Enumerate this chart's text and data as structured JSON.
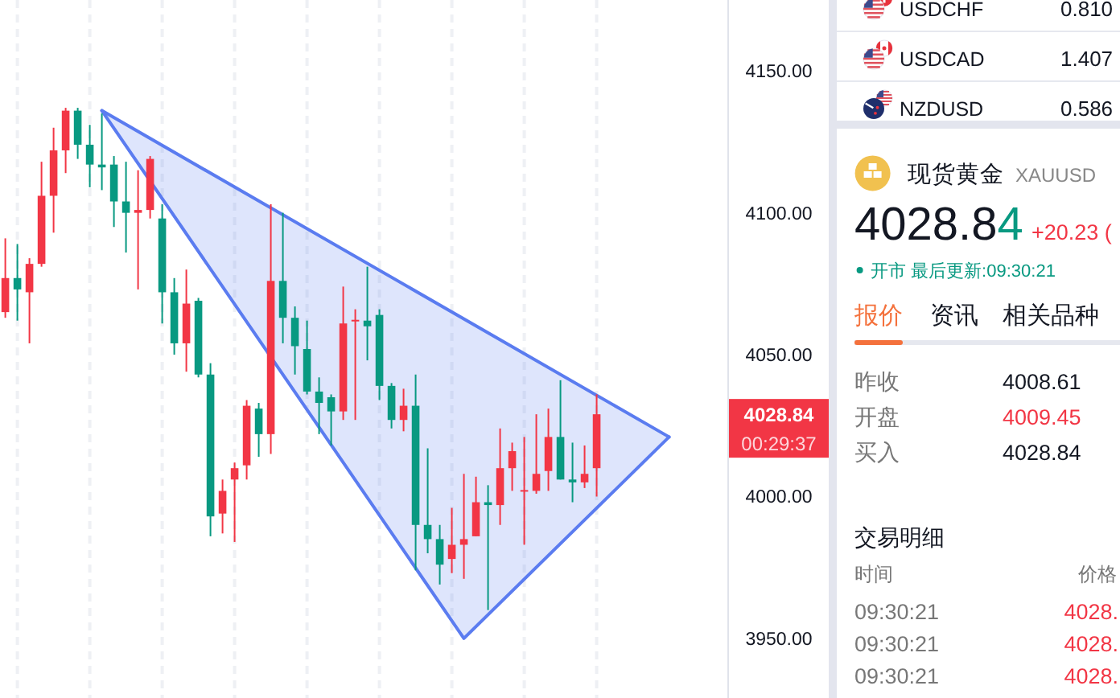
{
  "chart_data": [
    {
      "type": "candlestick",
      "categories": [
        null,
        null,
        null,
        null,
        null,
        null,
        null,
        null,
        null,
        null,
        null,
        null,
        null,
        null,
        null,
        null,
        null,
        null,
        null,
        null,
        null,
        null,
        null,
        null,
        null,
        null,
        null,
        null,
        null,
        null,
        null,
        null,
        null,
        null,
        null,
        null,
        null,
        null,
        null,
        null,
        null,
        null,
        null,
        null,
        null,
        null,
        null,
        null,
        null,
        null,
        null,
        null,
        null,
        null,
        null,
        null,
        null,
        null,
        null,
        null
      ],
      "ohlc": [
        [
          4065,
          4091,
          4063,
          4077
        ],
        [
          4077,
          4089,
          4062,
          4073
        ],
        [
          4072,
          4084,
          4054,
          4082
        ],
        [
          4082,
          4118,
          4081,
          4106
        ],
        [
          4106,
          4130,
          4093,
          4122
        ],
        [
          4122,
          4137,
          4114,
          4136
        ],
        [
          4136,
          4137,
          4119,
          4124
        ],
        [
          4124,
          4131,
          4109,
          4117
        ],
        [
          4117,
          4135,
          4108,
          4116
        ],
        [
          4117,
          4120,
          4095,
          4104
        ],
        [
          4104,
          4118,
          4086,
          4100
        ],
        [
          4100,
          4115,
          4073,
          4101
        ],
        [
          4101,
          4120,
          4098,
          4119
        ],
        [
          4098,
          4103,
          4061,
          4072
        ],
        [
          4072,
          4077,
          4050,
          4054
        ],
        [
          4054,
          4080,
          4044,
          4068
        ],
        [
          4069,
          4070,
          4042,
          4043
        ],
        [
          4043,
          4047,
          3986,
          3993
        ],
        [
          3994,
          4006,
          3987,
          4002
        ],
        [
          4006,
          4012,
          3984,
          4010
        ],
        [
          4011,
          4034,
          4006,
          4032
        ],
        [
          4031,
          4033,
          4014,
          4022
        ],
        [
          4022,
          4103,
          4015,
          4076
        ],
        [
          4076,
          4100,
          4054,
          4063
        ],
        [
          4063,
          4067,
          4043,
          4053
        ],
        [
          4052,
          4062,
          4036,
          4037
        ],
        [
          4037,
          4042,
          4022,
          4033
        ],
        [
          4035,
          4036,
          4018,
          4030
        ],
        [
          4030,
          4074,
          4027,
          4061
        ],
        [
          4062,
          4066,
          4027,
          4062
        ],
        [
          4062,
          4081,
          4048,
          4060
        ],
        [
          4064,
          4066,
          4034,
          4039
        ],
        [
          4039,
          4040,
          4024,
          4027
        ],
        [
          4027,
          4038,
          4023,
          4032
        ],
        [
          4032,
          4043,
          3974,
          3990
        ],
        [
          3990,
          4017,
          3980,
          3985
        ],
        [
          3985,
          3990,
          3969,
          3976
        ],
        [
          3978,
          3996,
          3973,
          3983
        ],
        [
          3983,
          4008,
          3971,
          3985
        ],
        [
          3986,
          4007,
          3986,
          3998
        ],
        [
          3998,
          4004,
          3960,
          3997
        ],
        [
          3997,
          4024,
          3990,
          4010
        ],
        [
          4010,
          4019,
          4002,
          4016
        ],
        [
          4002,
          4021,
          3983,
          4002
        ],
        [
          4002,
          4029,
          4001,
          4008
        ],
        [
          4009,
          4031,
          4002,
          4021
        ],
        [
          4021,
          4041,
          4006,
          4006
        ],
        [
          4006,
          4019,
          3998,
          4005
        ],
        [
          4005,
          4018,
          4003,
          4008
        ],
        [
          4010,
          4036,
          4000,
          4029
        ],
        null,
        null,
        null,
        null,
        null,
        null,
        null,
        null,
        null,
        null
      ],
      "colors": [
        "#f23645",
        "#089981",
        "#f23645",
        "#f23645",
        "#f23645",
        "#f23645",
        "#089981",
        "#089981",
        "#089981",
        "#089981",
        "#089981",
        "#f23645",
        "#f23645",
        "#089981",
        "#089981",
        "#f23645",
        "#089981",
        "#089981",
        "#f23645",
        "#f23645",
        "#f23645",
        "#089981",
        "#f23645",
        "#089981",
        "#089981",
        "#089981",
        "#089981",
        "#089981",
        "#f23645",
        "#f23645",
        "#089981",
        "#089981",
        "#089981",
        "#f23645",
        "#089981",
        "#089981",
        "#089981",
        "#f23645",
        "#f23645",
        "#f23645",
        "#089981",
        "#f23645",
        "#f23645",
        "#f23645",
        "#f23645",
        "#f23645",
        "#089981",
        "#089981",
        "#f23645",
        "#f23645",
        null,
        null,
        null,
        null,
        null,
        null,
        null,
        null,
        null,
        null
      ],
      "series": [
        {
          "type": "line",
          "color": "#5b7cf0",
          "values": [
            null,
            null,
            null,
            null,
            null,
            null,
            null,
            null,
            4136,
            null,
            null,
            null,
            null,
            null,
            null,
            null,
            null,
            null,
            null,
            null,
            null,
            null,
            null,
            null,
            null,
            null,
            null,
            null,
            null,
            null,
            null,
            null,
            null,
            null,
            null,
            null,
            null,
            null,
            null,
            null,
            null,
            null,
            null,
            null,
            null,
            null,
            null,
            null,
            null,
            null,
            null,
            null,
            null,
            null,
            null,
            4021,
            null,
            null,
            null,
            null
          ]
        },
        {
          "type": "line",
          "color": "#5b7cf0",
          "values": [
            null,
            null,
            null,
            null,
            null,
            null,
            null,
            null,
            4136,
            null,
            null,
            null,
            null,
            null,
            null,
            null,
            null,
            null,
            null,
            null,
            null,
            null,
            null,
            null,
            null,
            null,
            null,
            null,
            null,
            null,
            null,
            null,
            null,
            null,
            null,
            null,
            null,
            null,
            3950,
            null,
            null,
            null,
            null,
            null,
            null,
            null,
            null,
            null,
            null,
            null,
            null,
            null,
            null,
            null,
            null,
            4021,
            null,
            null,
            null,
            null
          ],
          "lower": [
            null,
            null,
            null,
            null,
            null,
            null,
            null,
            null,
            4136,
            null,
            null,
            null,
            null,
            null,
            null,
            null,
            null,
            null,
            null,
            null,
            null,
            null,
            null,
            null,
            null,
            null,
            null,
            null,
            null,
            null,
            null,
            null,
            null,
            null,
            null,
            null,
            null,
            null,
            3950,
            null,
            null,
            null,
            null,
            null,
            null,
            null,
            null,
            null,
            null,
            null,
            null,
            null,
            null,
            null,
            null,
            4021,
            null,
            null,
            null,
            null
          ],
          "upper": [
            null,
            null,
            null,
            null,
            null,
            null,
            null,
            null,
            4136,
            null,
            null,
            null,
            null,
            null,
            null,
            null,
            null,
            null,
            null,
            null,
            null,
            null,
            null,
            null,
            null,
            null,
            null,
            null,
            null,
            null,
            null,
            null,
            null,
            null,
            null,
            null,
            null,
            null,
            4063,
            null,
            null,
            null,
            null,
            null,
            null,
            null,
            null,
            null,
            null,
            null,
            null,
            null,
            null,
            null,
            null,
            4021,
            null,
            null,
            null,
            null
          ]
        }
      ],
      "ylim": [
        3929,
        4175
      ],
      "yticks": [
        {
          "value": 3950,
          "label": "3950.00"
        },
        {
          "value": 4000,
          "label": "4000.00"
        },
        {
          "value": 4050,
          "label": "4050.00"
        },
        {
          "value": 4100,
          "label": "4100.00"
        },
        {
          "value": 4150,
          "label": "4150.00"
        }
      ],
      "grid": "x",
      "tick_labels": "y",
      "annotations": [
        "4028.84",
        "00:29:37"
      ]
    },
    {
      "type": "other",
      "title": "现货黄金",
      "subtitle": "XAUUSD",
      "annotations": [
        "USDCHF",
        "0.810",
        "USDCAD",
        "1.407",
        "NZDUSD",
        "0.586",
        "4028.84",
        "+20.23 (",
        "开市 最后更新:09:30:21",
        "报价",
        "资讯",
        "相关品种",
        "昨收",
        "4008.61",
        "开盘",
        "4009.45",
        "买入",
        "4028.84",
        "交易明细",
        "时间",
        "价格",
        "09:30:21",
        "4028.",
        "09:30:21",
        "4028.",
        "09:30:21",
        "4028."
      ]
    }
  ]
}
